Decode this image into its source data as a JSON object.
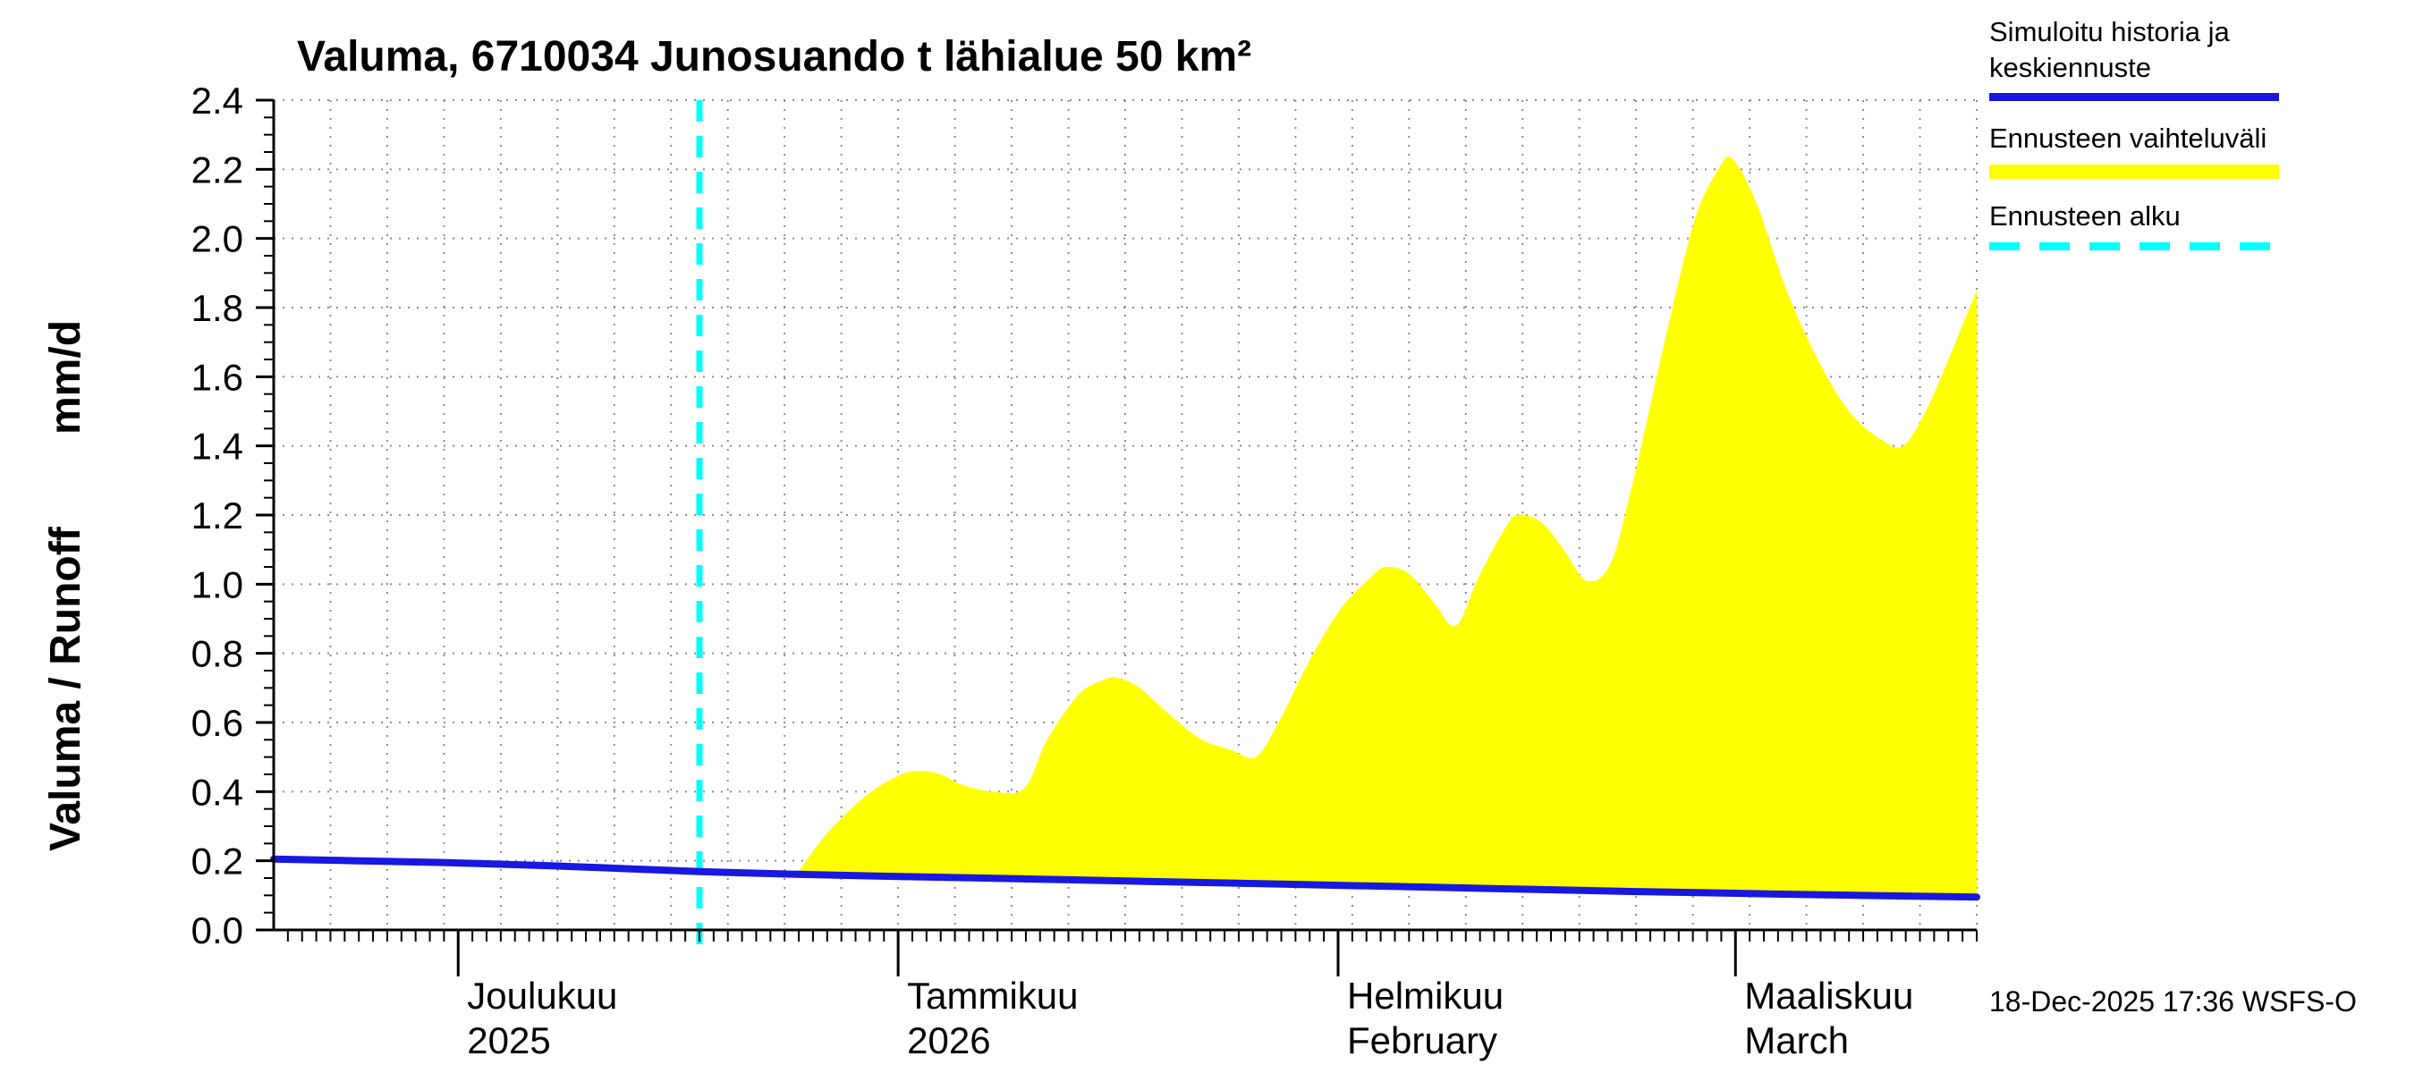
{
  "header": {
    "title": "Valuma, 6710034 Junosuando t lähialue 50 km²"
  },
  "y_axis": {
    "label": "Valuma / Runoff",
    "unit": "mm/d"
  },
  "legend": {
    "items": [
      {
        "label": "Simuloitu historia ja keskiennuste",
        "swatch": "line",
        "color": "#1818e0"
      },
      {
        "label": "Ennusteen vaihteluväli",
        "swatch": "band",
        "color": "#ffff00"
      },
      {
        "label": "Ennusteen alku",
        "swatch": "dashed",
        "color": "#00ffff"
      }
    ]
  },
  "footer": {
    "timestamp": "18-Dec-2025 17:36 WSFS-O"
  },
  "chart_data": {
    "type": "area",
    "title": "Valuma, 6710034 Junosuando t lähialue 50 km²",
    "ylabel": "Valuma / Runoff (mm/d)",
    "ylim": [
      0,
      2.4
    ],
    "y_tick_step": 0.2,
    "y_minor_step": 0.05,
    "y_ticks": [
      "0.0",
      "0.2",
      "0.4",
      "0.6",
      "0.8",
      "1.0",
      "1.2",
      "1.4",
      "1.6",
      "1.8",
      "2.0",
      "2.2",
      "2.4"
    ],
    "x_unit": "days since 2025-11-18",
    "xlim": [
      0,
      120
    ],
    "grid": true,
    "grid_day_step": 4,
    "grid_color": "#8c8c8c",
    "legend_position": "top-right",
    "forecast_start_day": 30,
    "forecast_start_color": "#00ffff",
    "month_ticks": [
      {
        "day": 13,
        "label": "Joulukuu",
        "sublabel": "2025"
      },
      {
        "day": 44,
        "label": "Tammikuu",
        "sublabel": "2026"
      },
      {
        "day": 75,
        "label": "Helmikuu",
        "sublabel": "February"
      },
      {
        "day": 103,
        "label": "Maaliskuu",
        "sublabel": "March"
      }
    ],
    "series": [
      {
        "name": "Simuloitu historia ja keskiennuste",
        "type": "line",
        "color": "#1818e0",
        "points": [
          [
            0,
            0.205
          ],
          [
            6,
            0.2
          ],
          [
            12,
            0.195
          ],
          [
            16,
            0.19
          ],
          [
            20,
            0.185
          ],
          [
            25,
            0.177
          ],
          [
            30,
            0.169
          ],
          [
            35,
            0.163
          ],
          [
            40,
            0.158
          ],
          [
            45,
            0.154
          ],
          [
            50,
            0.15
          ],
          [
            56,
            0.145
          ],
          [
            62,
            0.14
          ],
          [
            68,
            0.135
          ],
          [
            75,
            0.129
          ],
          [
            82,
            0.123
          ],
          [
            89,
            0.117
          ],
          [
            96,
            0.111
          ],
          [
            103,
            0.106
          ],
          [
            110,
            0.101
          ],
          [
            115,
            0.098
          ],
          [
            120,
            0.095
          ]
        ]
      },
      {
        "name": "Ennusteen vaihteluväli",
        "type": "band",
        "color": "#ffff00",
        "upper": [
          [
            37,
            0.17
          ],
          [
            39,
            0.28
          ],
          [
            41.5,
            0.38
          ],
          [
            43.7,
            0.44
          ],
          [
            45.3,
            0.46
          ],
          [
            47,
            0.45
          ],
          [
            48.5,
            0.42
          ],
          [
            50.7,
            0.4
          ],
          [
            52.9,
            0.41
          ],
          [
            54.5,
            0.55
          ],
          [
            56.7,
            0.68
          ],
          [
            58.3,
            0.72
          ],
          [
            59.4,
            0.73
          ],
          [
            61,
            0.7
          ],
          [
            63.2,
            0.62
          ],
          [
            65.4,
            0.55
          ],
          [
            67.5,
            0.52
          ],
          [
            69.2,
            0.5
          ],
          [
            70.8,
            0.6
          ],
          [
            73,
            0.78
          ],
          [
            75.2,
            0.93
          ],
          [
            77.3,
            1.02
          ],
          [
            78.4,
            1.05
          ],
          [
            80,
            1.03
          ],
          [
            81.7,
            0.95
          ],
          [
            83.3,
            0.88
          ],
          [
            84.9,
            1.02
          ],
          [
            86.6,
            1.15
          ],
          [
            87.6,
            1.2
          ],
          [
            89.3,
            1.18
          ],
          [
            90.9,
            1.1
          ],
          [
            92.5,
            1.01
          ],
          [
            94.2,
            1.06
          ],
          [
            95.8,
            1.3
          ],
          [
            98,
            1.7
          ],
          [
            100.1,
            2.05
          ],
          [
            101.8,
            2.2
          ],
          [
            102.8,
            2.23
          ],
          [
            104.5,
            2.1
          ],
          [
            106.6,
            1.85
          ],
          [
            108.8,
            1.65
          ],
          [
            111,
            1.5
          ],
          [
            113.2,
            1.42
          ],
          [
            114.8,
            1.4
          ],
          [
            116.4,
            1.5
          ],
          [
            118,
            1.65
          ],
          [
            120,
            1.85
          ]
        ],
        "lower": [
          [
            37,
            0.161
          ],
          [
            45,
            0.154
          ],
          [
            55,
            0.146
          ],
          [
            65,
            0.138
          ],
          [
            75,
            0.129
          ],
          [
            85,
            0.121
          ],
          [
            95,
            0.112
          ],
          [
            105,
            0.104
          ],
          [
            113,
            0.099
          ],
          [
            120,
            0.094
          ]
        ]
      }
    ]
  }
}
